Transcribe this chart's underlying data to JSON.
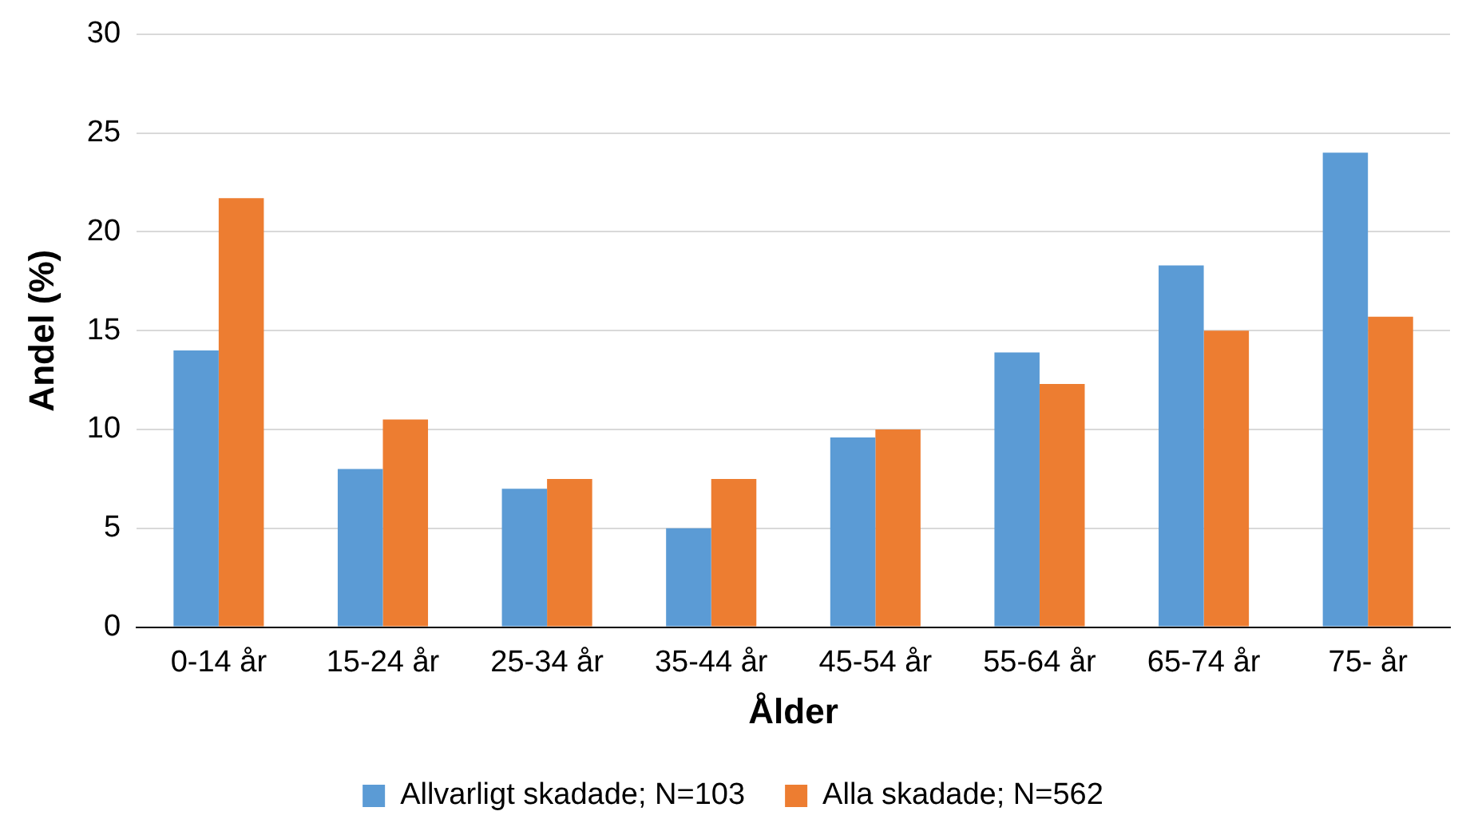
{
  "chart_data": {
    "type": "bar",
    "xlabel": "Ålder",
    "ylabel": "Andel (%)",
    "categories": [
      "0-14 år",
      "15-24 år",
      "25-34 år",
      "35-44 år",
      "45-54 år",
      "55-64 år",
      "65-74 år",
      "75- år"
    ],
    "series": [
      {
        "name": "Allvarligt skadade; N=103",
        "color": "#5b9bd5",
        "values": [
          14,
          8,
          7,
          5,
          9.6,
          13.9,
          18.3,
          24
        ]
      },
      {
        "name": "Alla skadade; N=562",
        "color": "#ed7d31",
        "values": [
          21.7,
          10.5,
          7.5,
          7.5,
          10,
          12.3,
          15,
          15.7
        ]
      }
    ],
    "ylim": [
      0,
      30
    ],
    "yticks": [
      0,
      5,
      10,
      15,
      20,
      25,
      30
    ],
    "grid": "y",
    "legend": "bottom"
  }
}
